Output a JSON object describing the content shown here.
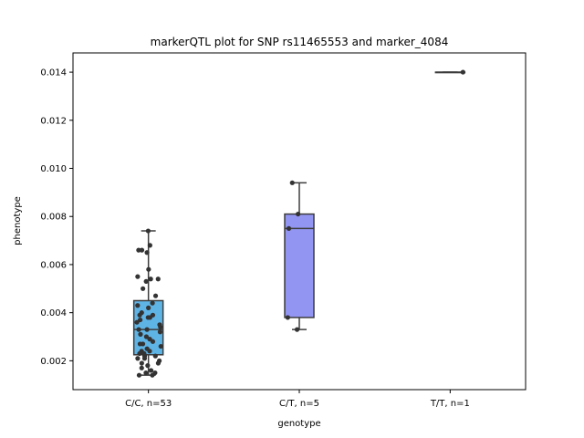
{
  "chart_data": {
    "type": "box",
    "title": "markerQTL plot for SNP rs11465553 and marker_4084",
    "xlabel": "genotype",
    "ylabel": "phenotype",
    "ylim": [
      0.0008,
      0.0148
    ],
    "yticks": [
      "0.002",
      "0.004",
      "0.006",
      "0.008",
      "0.010",
      "0.012",
      "0.014"
    ],
    "grid": false,
    "categories": [
      "C/C, n=53",
      "C/T, n=5",
      "T/T, n=1"
    ],
    "colors": [
      "#5fb4e6",
      "#9395f3",
      "#c49bdc"
    ],
    "boxes": [
      {
        "q1": 0.00225,
        "median": 0.0033,
        "q3": 0.0045,
        "whisker_low": 0.0014,
        "whisker_high": 0.0074
      },
      {
        "q1": 0.0038,
        "median": 0.0075,
        "q3": 0.0081,
        "whisker_low": 0.0033,
        "whisker_high": 0.0094
      },
      {
        "q1": 0.014,
        "median": 0.014,
        "q3": 0.014,
        "whisker_low": 0.014,
        "whisker_high": 0.014
      }
    ],
    "points": [
      [
        0.0074,
        0.0068,
        0.0066,
        0.0066,
        0.0065,
        0.0058,
        0.0055,
        0.0054,
        0.0054,
        0.0053,
        0.005,
        0.0047,
        0.0044,
        0.0043,
        0.0042,
        0.004,
        0.0039,
        0.0039,
        0.0038,
        0.0038,
        0.0037,
        0.0036,
        0.0035,
        0.0034,
        0.0033,
        0.0033,
        0.0032,
        0.0031,
        0.003,
        0.0029,
        0.0028,
        0.0027,
        0.0027,
        0.0026,
        0.0025,
        0.0024,
        0.0024,
        0.0023,
        0.0023,
        0.0022,
        0.0022,
        0.0021,
        0.0021,
        0.002,
        0.0019,
        0.0019,
        0.0018,
        0.0017,
        0.0016,
        0.0015,
        0.0015,
        0.0014,
        0.0014
      ],
      [
        0.0094,
        0.0081,
        0.0075,
        0.0038,
        0.0033
      ],
      [
        0.014
      ]
    ]
  }
}
